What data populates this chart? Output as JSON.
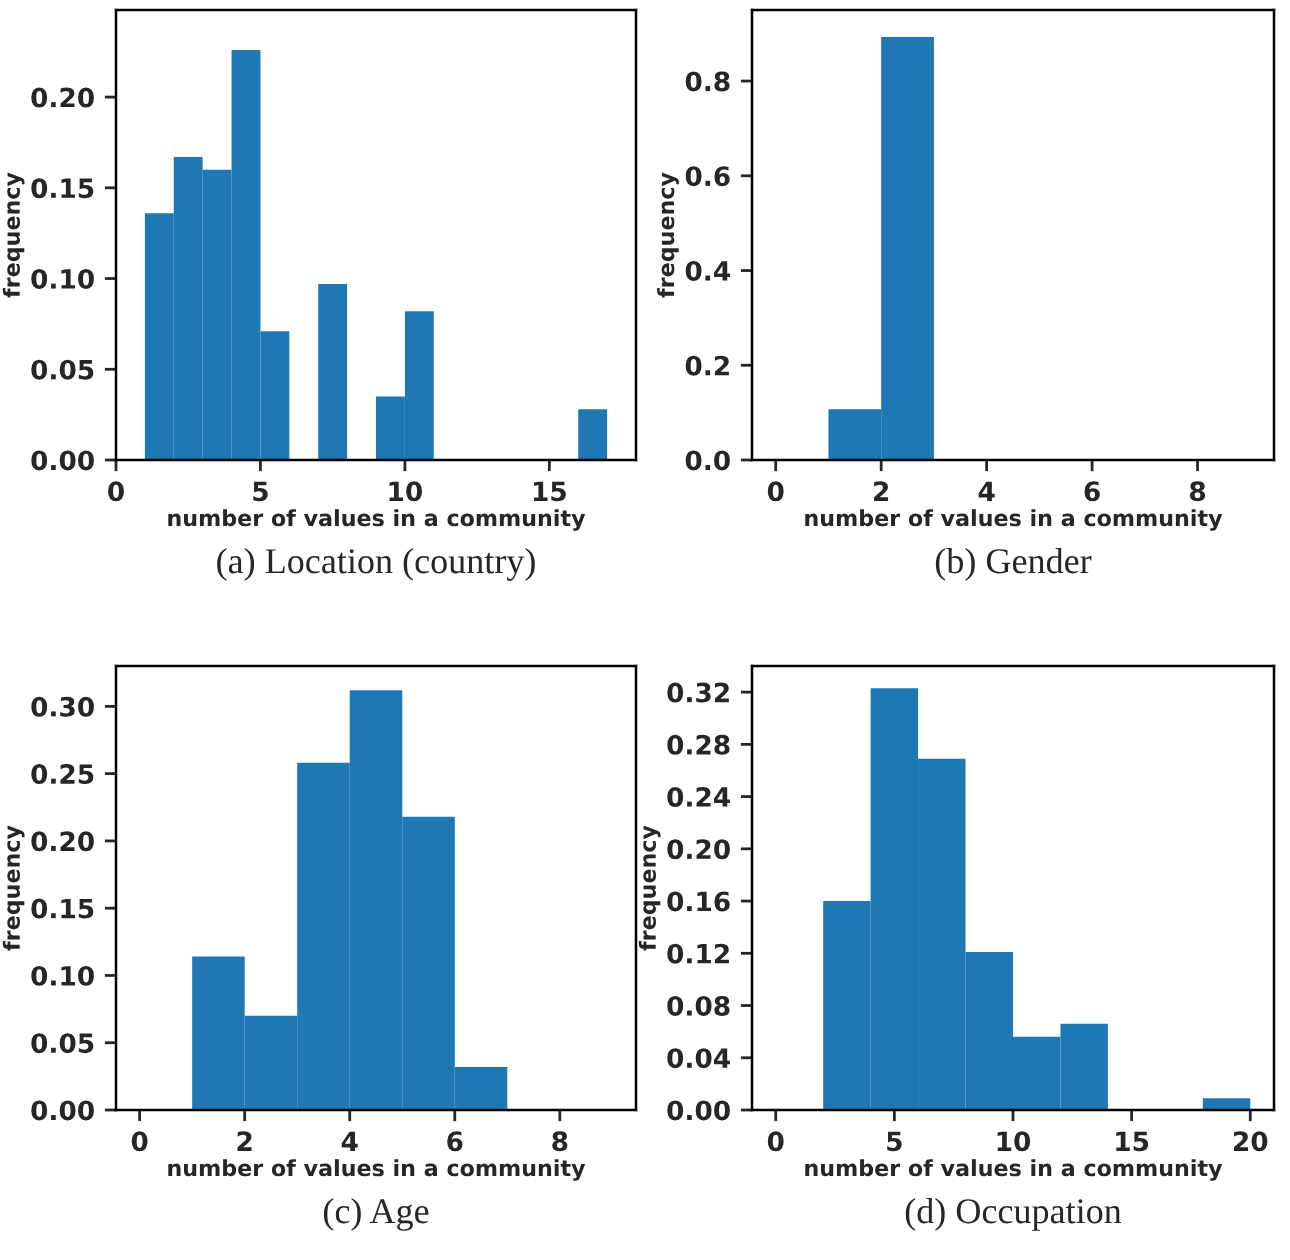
{
  "chart_data": [
    {
      "type": "histogram",
      "title": "(a) Location (country)",
      "xlabel": "number of values in a community",
      "ylabel": "frequency",
      "color": "#1f77b4",
      "bins": [
        1,
        2,
        3,
        4,
        5,
        6,
        7,
        8,
        9,
        10,
        11,
        12,
        13,
        14,
        15,
        16,
        17
      ],
      "values": [
        0.136,
        0.167,
        0.16,
        0.226,
        0.071,
        0,
        0.097,
        0,
        0.035,
        0.082,
        0,
        0,
        0,
        0,
        0,
        0.028
      ],
      "xlim": [
        0,
        18
      ],
      "xticks": [
        0,
        5,
        10,
        15
      ],
      "ylim": [
        0,
        0.248
      ],
      "yticks": [
        {
          "value": 0,
          "label": "0.00"
        },
        {
          "value": 0.05,
          "label": "0.05"
        },
        {
          "value": 0.1,
          "label": "0.10"
        },
        {
          "value": 0.15,
          "label": "0.15"
        },
        {
          "value": 0.2,
          "label": "0.20"
        }
      ],
      "grid": false
    },
    {
      "type": "histogram",
      "title": "(b) Gender",
      "xlabel": "number of values in a community",
      "ylabel": "frequency",
      "color": "#1f77b4",
      "bins": [
        0,
        1,
        2,
        3,
        4,
        5,
        6,
        7,
        8,
        9
      ],
      "values": [
        0,
        0.107,
        0.893,
        0,
        0,
        0,
        0,
        0,
        0
      ],
      "xlim": [
        -0.45,
        9.45
      ],
      "xticks": [
        0,
        2,
        4,
        6,
        8
      ],
      "ylim": [
        0,
        0.95
      ],
      "yticks": [
        {
          "value": 0,
          "label": "0.0"
        },
        {
          "value": 0.2,
          "label": "0.2"
        },
        {
          "value": 0.4,
          "label": "0.4"
        },
        {
          "value": 0.6,
          "label": "0.6"
        },
        {
          "value": 0.8,
          "label": "0.8"
        }
      ],
      "grid": false
    },
    {
      "type": "histogram",
      "title": "(c) Age",
      "xlabel": "number of values in a community",
      "ylabel": "frequency",
      "color": "#1f77b4",
      "bins": [
        0,
        1,
        2,
        3,
        4,
        5,
        6,
        7,
        8,
        9
      ],
      "values": [
        0,
        0.114,
        0.07,
        0.258,
        0.312,
        0.218,
        0.032,
        0,
        0
      ],
      "xlim": [
        -0.45,
        9.45
      ],
      "xticks": [
        0,
        2,
        4,
        6,
        8
      ],
      "ylim": [
        0,
        0.33
      ],
      "yticks": [
        {
          "value": 0,
          "label": "0.00"
        },
        {
          "value": 0.05,
          "label": "0.05"
        },
        {
          "value": 0.1,
          "label": "0.10"
        },
        {
          "value": 0.15,
          "label": "0.15"
        },
        {
          "value": 0.2,
          "label": "0.20"
        },
        {
          "value": 0.25,
          "label": "0.25"
        },
        {
          "value": 0.3,
          "label": "0.30"
        }
      ],
      "grid": false
    },
    {
      "type": "histogram",
      "title": "(d) Occupation",
      "xlabel": "number of values in a community",
      "ylabel": "frequency",
      "color": "#1f77b4",
      "bins": [
        0,
        2,
        4,
        6,
        8,
        10,
        12,
        14,
        16,
        18,
        20
      ],
      "values": [
        0,
        0.16,
        0.323,
        0.269,
        0.121,
        0.056,
        0.066,
        0,
        0,
        0.009
      ],
      "xlim": [
        -1,
        21
      ],
      "xticks": [
        0,
        5,
        10,
        15,
        20
      ],
      "ylim": [
        0,
        0.34
      ],
      "yticks": [
        {
          "value": 0,
          "label": "0.00"
        },
        {
          "value": 0.04,
          "label": "0.04"
        },
        {
          "value": 0.08,
          "label": "0.08"
        },
        {
          "value": 0.12,
          "label": "0.12"
        },
        {
          "value": 0.16,
          "label": "0.16"
        },
        {
          "value": 0.2,
          "label": "0.20"
        },
        {
          "value": 0.24,
          "label": "0.24"
        },
        {
          "value": 0.28,
          "label": "0.28"
        },
        {
          "value": 0.32,
          "label": "0.32"
        }
      ],
      "grid": false
    }
  ]
}
